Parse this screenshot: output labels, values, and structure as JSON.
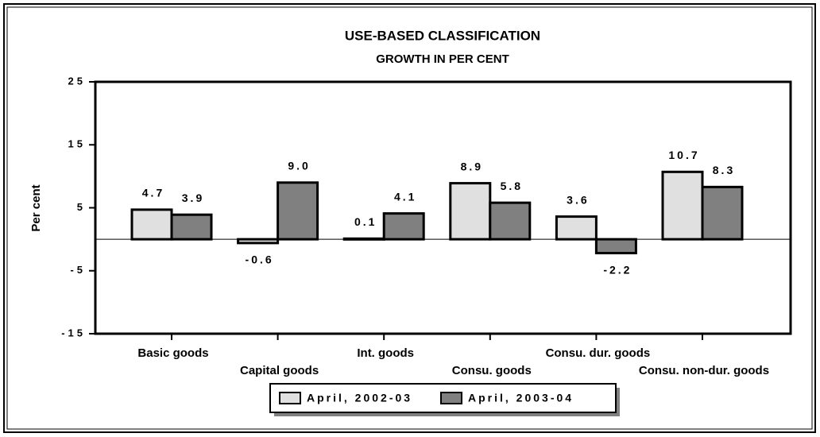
{
  "chart_data": {
    "type": "bar",
    "title": "USE-BASED CLASSIFICATION",
    "subtitle": "GROWTH IN PER CENT",
    "y_label": "Per cent",
    "categories": [
      "Basic goods",
      "Capital goods",
      "Int. goods",
      "Consu. goods",
      "Consu. dur. goods",
      "Consu. non-dur. goods"
    ],
    "series": [
      {
        "name": "April, 2002-03",
        "color": "#e0e0e0",
        "values": [
          4.7,
          -0.6,
          0.1,
          8.9,
          3.6,
          10.7
        ]
      },
      {
        "name": "April, 2003-04",
        "color": "#808080",
        "values": [
          3.9,
          9.0,
          4.1,
          5.8,
          -2.2,
          8.3
        ],
        "value_labels": [
          "3.9",
          "9.0",
          "4.1",
          "5.8",
          "-2.2",
          "8.3"
        ]
      }
    ],
    "ylim": [
      -15,
      25
    ],
    "yticks": [
      -15,
      -5,
      5,
      15,
      25
    ],
    "legend": "bottom"
  }
}
